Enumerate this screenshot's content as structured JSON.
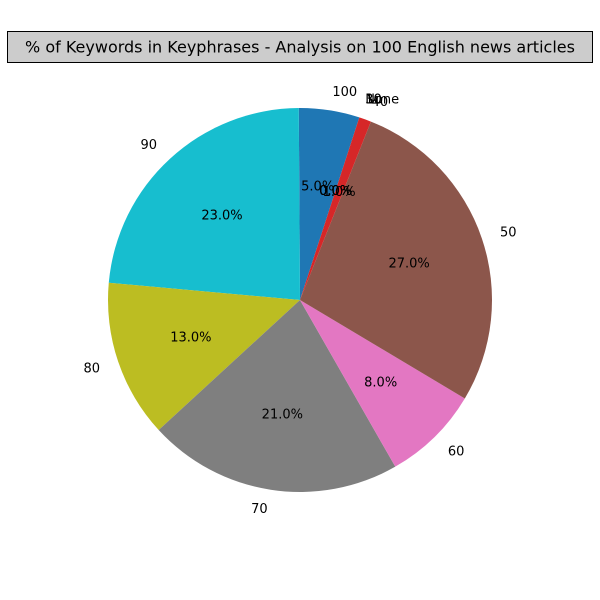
{
  "chart_data": {
    "type": "pie",
    "title": "% of Keywords in Keyphrases - Analysis on 100 English news articles",
    "slices": [
      {
        "label": "100",
        "value": 5.0,
        "pct_label": "5.0%",
        "color": "#1f77b4"
      },
      {
        "label": "90",
        "value": 23.0,
        "pct_label": "23.0%",
        "color": "#17becf"
      },
      {
        "label": "80",
        "value": 13.0,
        "pct_label": "13.0%",
        "color": "#bcbd22"
      },
      {
        "label": "70",
        "value": 21.0,
        "pct_label": "21.0%",
        "color": "#7f7f7f"
      },
      {
        "label": "60",
        "value": 8.0,
        "pct_label": "8.0%",
        "color": "#e377c2"
      },
      {
        "label": "50",
        "value": 27.0,
        "pct_label": "27.0%",
        "color": "#8c564b"
      },
      {
        "label": "40",
        "value": 1.0,
        "pct_label": "1.0%",
        "color": "#d62728"
      },
      {
        "label": "30",
        "value": 0.0,
        "pct_label": "0.0%",
        "color": "#2ca02c"
      },
      {
        "label": "10",
        "value": 0.0,
        "pct_label": "0.0%",
        "color": "#ff7f0e"
      },
      {
        "label": "None",
        "value": 0.0,
        "pct_label": "0.0%",
        "color": "#9467bd"
      }
    ]
  }
}
